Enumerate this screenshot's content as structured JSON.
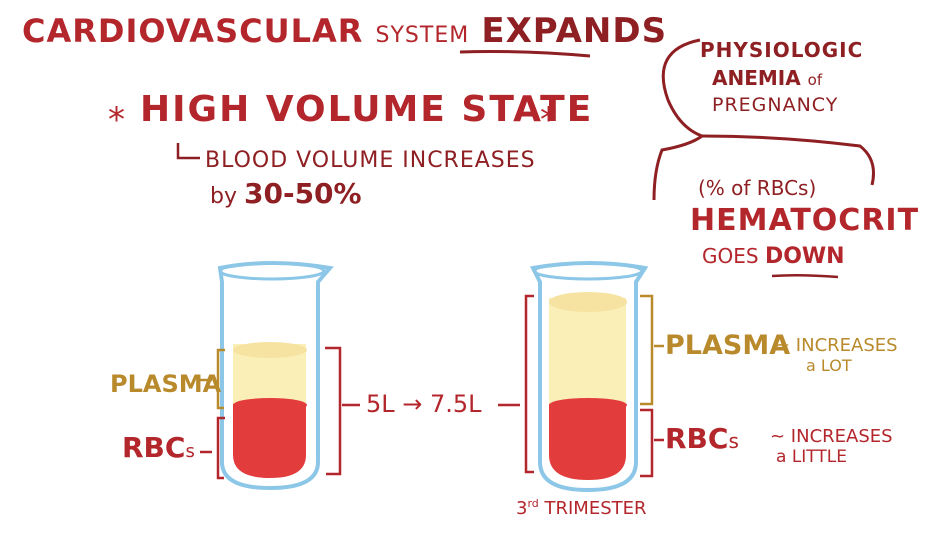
{
  "title": {
    "part1": "CARDIOVASCULAR",
    "part2": "SYSTEM",
    "part3": "EXPANDS"
  },
  "high_volume": {
    "star_left": "*",
    "heading": "HIGH VOLUME STATE",
    "star_right": "*",
    "line1": "BLOOD VOLUME INCREASES",
    "line2_prefix": "by",
    "line2_value": "30-50%"
  },
  "anemia": {
    "line1": "PHYSIOLOGIC",
    "line2_bold": "ANEMIA",
    "line2_small": "of",
    "line3": "PREGNANCY"
  },
  "hematocrit": {
    "note": "(% of RBCs)",
    "heading": "HEMATOCRIT",
    "goes": "GOES",
    "down": "DOWN"
  },
  "left_tube": {
    "plasma_label": "PLASMA",
    "rbc_label": "RBC",
    "rbc_suffix": "s"
  },
  "volume_change": "5L → 7.5L",
  "right_tube": {
    "plasma_label": "PLASMA",
    "plasma_note1": "~ INCREASES",
    "plasma_note2": "a LOT",
    "rbc_label": "RBC",
    "rbc_suffix": "s",
    "rbc_note1": "~ INCREASES",
    "rbc_note2": "a LITTLE",
    "caption_num": "3",
    "caption_sup": "rd",
    "caption_text": "TRIMESTER"
  },
  "colors": {
    "red": "#b3262b",
    "dark_red": "#8e1f22",
    "gold": "#b98a2c",
    "plasma": "#fbefb8",
    "rbc": "#e23c3c",
    "glass": "#8cc7e8"
  },
  "icons": [
    "test-tube-left",
    "test-tube-right",
    "curly-bracket",
    "arrow-right"
  ]
}
